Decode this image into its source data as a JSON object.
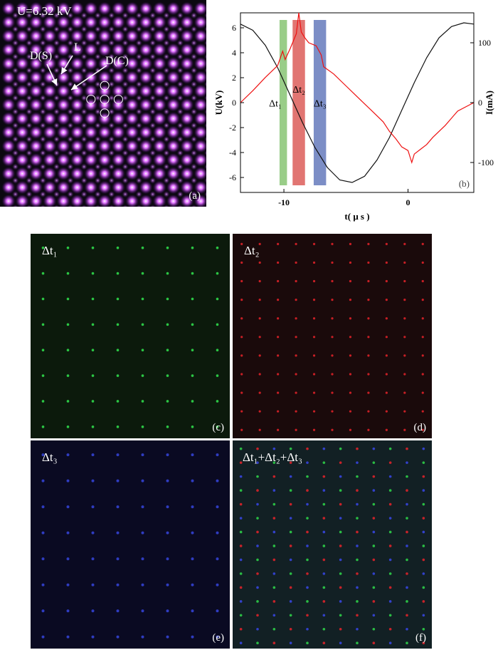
{
  "panel_a": {
    "voltage_label": "U=6.32 kV",
    "label_ds": "D(S)",
    "label_l": "L",
    "label_dc": "D(C)",
    "tag": "(a)"
  },
  "panel_c": {
    "label": "Δt₁",
    "tag": "(c)",
    "color": "#2fd84a"
  },
  "panel_d": {
    "label": "Δt₂",
    "tag": "(d)",
    "color": "#e8232a"
  },
  "panel_e": {
    "label": "Δt₃",
    "tag": "(e)",
    "color": "#3848e8"
  },
  "panel_f": {
    "label": "Δt₁+Δt₂+Δt₃",
    "tag": "(f)"
  },
  "chart_data": {
    "type": "line",
    "tag": "(b)",
    "xlabel": "t( μ s )",
    "ylabel_left": "U(kV)",
    "ylabel_right": "I(mA)",
    "xlim": [
      -13.5,
      5.3
    ],
    "ylim_left": [
      -7.2,
      7.2
    ],
    "ylim_right": [
      -150,
      150
    ],
    "x_ticks": [
      -10,
      0
    ],
    "y_ticks_left": [
      6,
      4,
      2,
      0,
      -2,
      -4,
      -6
    ],
    "y_ticks_right": [
      100,
      0,
      -100
    ],
    "bands": [
      {
        "name": "Δt₁",
        "from": -10.35,
        "to": -9.75,
        "color": "#7fc06a"
      },
      {
        "name": "Δt₂",
        "from": -9.3,
        "to": -8.3,
        "color": "#d9534f"
      },
      {
        "name": "Δt₃",
        "from": -7.6,
        "to": -6.6,
        "color": "#5b72b8"
      }
    ],
    "series": [
      {
        "axis": "left",
        "color": "#111111",
        "x": [
          -13.5,
          -12.5,
          -11.5,
          -10.5,
          -9.5,
          -8.5,
          -7.5,
          -6.5,
          -5.5,
          -4.5,
          -3.5,
          -2.5,
          -1.5,
          -0.5,
          0.5,
          1.5,
          2.5,
          3.5,
          4.5,
          5.3
        ],
        "y": [
          6.3,
          5.8,
          4.6,
          2.8,
          0.6,
          -1.6,
          -3.6,
          -5.2,
          -6.2,
          -6.4,
          -5.9,
          -4.6,
          -2.8,
          -0.6,
          1.6,
          3.6,
          5.2,
          6.1,
          6.4,
          6.3
        ]
      },
      {
        "axis": "right",
        "color": "#ee1111",
        "x": [
          -13.5,
          -12.5,
          -11.5,
          -10.5,
          -10.1,
          -9.9,
          -9.5,
          -9.0,
          -8.8,
          -8.6,
          -8.3,
          -8.0,
          -7.4,
          -7.0,
          -6.8,
          -6.0,
          -5.0,
          -4.0,
          -3.0,
          -2.0,
          -1.5,
          -1.0,
          -0.5,
          0.0,
          0.3,
          0.5,
          1.0,
          1.5,
          2.0,
          3.0,
          4.0,
          5.3
        ],
        "y": [
          0,
          20,
          42,
          62,
          86,
          72,
          90,
          115,
          150,
          118,
          108,
          100,
          95,
          80,
          60,
          48,
          28,
          8,
          -12,
          -32,
          -48,
          -60,
          -74,
          -80,
          -100,
          -86,
          -78,
          -70,
          -58,
          -38,
          -14,
          0
        ]
      }
    ]
  }
}
